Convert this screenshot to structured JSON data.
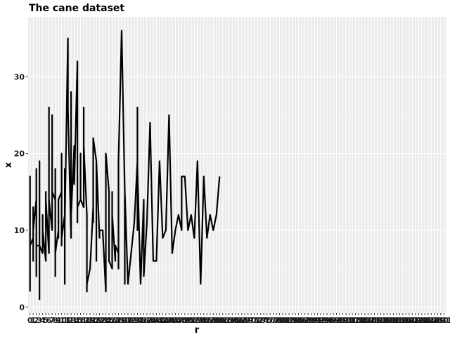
{
  "chart_data": {
    "type": "line",
    "title": "The cane dataset",
    "xlabel": "r",
    "ylabel": "x",
    "ylim": [
      -0.8,
      37.8
    ],
    "y_ticks": [
      0,
      10,
      20,
      30
    ],
    "x_tick_labels": [
      "0",
      "1",
      "2",
      "3",
      "4",
      "5",
      "6",
      "7",
      "8",
      "9",
      "10",
      "11",
      "12",
      "13",
      "14",
      "15",
      "16",
      "17",
      "18",
      "19",
      "20",
      "21",
      "22",
      "23",
      "24",
      "25",
      "26",
      "27",
      "28",
      "29",
      "30",
      "31",
      "32",
      "33",
      "34",
      "35",
      "36",
      "37",
      "38",
      "39",
      "40",
      "41",
      "42",
      "43",
      "44",
      "45",
      "46",
      "47",
      "48",
      "49",
      "50",
      "51",
      "52",
      "53",
      "54",
      "55",
      "56",
      "57",
      "58",
      "59",
      "60",
      "61",
      "62",
      "63",
      "64",
      "65",
      "66",
      "67",
      "68",
      "69",
      "70",
      "71",
      "72",
      "73",
      "74",
      "75",
      "76",
      "77",
      "78",
      "79",
      "80",
      "81",
      "82",
      "83",
      "84",
      "85",
      "86",
      "87",
      "88",
      "89",
      "90",
      "91",
      "92",
      "93",
      "94",
      "95",
      "96",
      "97",
      "98",
      "99",
      "100",
      "101",
      "102",
      "103",
      "104",
      "105",
      "106",
      "107",
      "108",
      "109",
      "110",
      "111",
      "112",
      "113",
      "114",
      "115",
      "116",
      "117",
      "118",
      "119",
      "120",
      "121",
      "122",
      "123",
      "124",
      "125",
      "126",
      "127",
      "128",
      "129",
      "130",
      "131"
    ],
    "grid": true,
    "series": [
      {
        "points": [
          [
            0,
            2
          ],
          [
            0,
            17
          ],
          [
            0,
            8
          ],
          [
            1,
            9
          ],
          [
            1,
            6
          ],
          [
            1,
            13
          ],
          [
            1,
            10
          ],
          [
            2,
            14
          ],
          [
            2,
            4
          ],
          [
            2,
            18
          ],
          [
            2,
            8
          ],
          [
            3,
            8
          ],
          [
            3,
            1
          ],
          [
            3,
            19
          ],
          [
            3,
            8
          ],
          [
            4,
            7
          ],
          [
            4,
            12
          ],
          [
            4,
            10
          ],
          [
            5,
            6
          ],
          [
            5,
            15
          ],
          [
            5,
            14
          ],
          [
            6,
            7
          ],
          [
            6,
            26
          ],
          [
            6,
            14
          ],
          [
            7,
            10
          ],
          [
            7,
            25
          ],
          [
            7,
            15
          ],
          [
            8,
            14
          ],
          [
            8,
            4
          ],
          [
            8,
            18
          ],
          [
            8,
            7
          ],
          [
            9,
            10
          ],
          [
            9,
            9
          ],
          [
            9,
            14
          ],
          [
            10,
            15
          ],
          [
            10,
            20
          ],
          [
            10,
            8
          ],
          [
            10,
            9
          ],
          [
            11,
            12
          ],
          [
            11,
            3
          ],
          [
            11,
            18
          ],
          [
            11,
            11
          ],
          [
            12,
            35
          ],
          [
            12,
            26
          ],
          [
            13,
            9
          ],
          [
            13,
            28
          ],
          [
            13,
            12
          ],
          [
            14,
            21
          ],
          [
            14,
            17
          ],
          [
            14,
            16
          ],
          [
            15,
            32
          ],
          [
            15,
            11
          ],
          [
            15,
            13
          ],
          [
            16,
            14
          ],
          [
            16,
            20
          ],
          [
            16,
            14
          ],
          [
            17,
            13
          ],
          [
            17,
            26
          ],
          [
            17,
            21
          ],
          [
            18,
            12
          ],
          [
            18,
            2
          ],
          [
            18,
            3
          ],
          [
            19,
            5
          ],
          [
            20,
            13
          ],
          [
            20,
            11
          ],
          [
            20,
            22
          ],
          [
            21,
            19
          ],
          [
            21,
            6
          ],
          [
            21,
            19
          ],
          [
            22,
            9
          ],
          [
            22,
            10
          ],
          [
            23,
            10
          ],
          [
            23,
            10
          ],
          [
            24,
            2
          ],
          [
            24,
            20
          ],
          [
            25,
            15
          ],
          [
            25,
            6
          ],
          [
            26,
            5
          ],
          [
            26,
            15
          ],
          [
            26,
            12
          ],
          [
            27,
            6
          ],
          [
            27,
            8
          ],
          [
            28,
            7
          ],
          [
            28,
            5
          ],
          [
            28,
            19
          ],
          [
            29,
            36
          ],
          [
            30,
            15
          ],
          [
            30,
            3
          ],
          [
            30,
            15
          ],
          [
            31,
            3
          ],
          [
            33,
            11
          ],
          [
            34,
            19
          ],
          [
            34,
            10
          ],
          [
            34,
            26
          ],
          [
            34,
            18
          ],
          [
            35,
            3
          ],
          [
            36,
            14
          ],
          [
            36,
            4
          ],
          [
            37,
            11
          ],
          [
            38,
            24
          ],
          [
            39,
            6
          ],
          [
            40,
            6
          ],
          [
            41,
            19
          ],
          [
            42,
            9
          ],
          [
            43,
            10
          ],
          [
            44,
            25
          ],
          [
            45,
            7
          ],
          [
            46,
            10
          ],
          [
            47,
            12
          ],
          [
            48,
            10
          ],
          [
            48,
            17
          ],
          [
            49,
            17
          ],
          [
            50,
            10
          ],
          [
            51,
            12
          ],
          [
            52,
            9
          ],
          [
            53,
            19
          ],
          [
            54,
            3
          ],
          [
            55,
            17
          ],
          [
            56,
            9
          ],
          [
            57,
            12
          ],
          [
            58,
            10
          ],
          [
            59,
            12
          ],
          [
            60,
            17
          ]
        ]
      }
    ]
  }
}
